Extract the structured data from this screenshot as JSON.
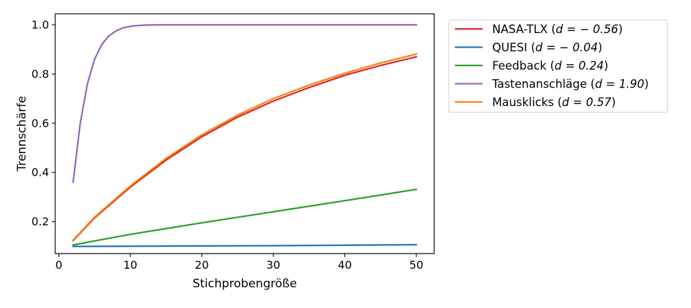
{
  "chart_data": {
    "type": "line",
    "xlabel": "Stichprobengröße",
    "ylabel": "Trennschärfe",
    "xlim": [
      -0.5,
      52.5
    ],
    "ylim": [
      0.07,
      1.045
    ],
    "xticks": [
      0,
      10,
      20,
      30,
      40,
      50
    ],
    "xtick_labels": [
      "0",
      "10",
      "20",
      "30",
      "40",
      "50"
    ],
    "yticks": [
      0.2,
      0.4,
      0.6,
      0.8,
      1.0
    ],
    "ytick_labels": [
      "0.2",
      "0.4",
      "0.6",
      "0.8",
      "1.0"
    ],
    "grid": false,
    "legend_placement": "outside-top-right",
    "series": [
      {
        "name": "NASA-TLX (d = −0.56)",
        "color": "#d62728",
        "x": [
          2,
          5,
          10,
          15,
          20,
          25,
          30,
          35,
          40,
          45,
          50
        ],
        "y": [
          0.123,
          0.215,
          0.34,
          0.45,
          0.545,
          0.625,
          0.69,
          0.745,
          0.795,
          0.835,
          0.87
        ]
      },
      {
        "name": "QUESI (d = −0.04)",
        "color": "#1f77b4",
        "x": [
          2,
          10,
          20,
          30,
          40,
          50
        ],
        "y": [
          0.099,
          0.1,
          0.101,
          0.102,
          0.104,
          0.106
        ]
      },
      {
        "name": "Feedback (d = 0.24)",
        "color": "#2ca02c",
        "x": [
          2,
          10,
          20,
          30,
          40,
          50
        ],
        "y": [
          0.105,
          0.148,
          0.195,
          0.24,
          0.285,
          0.331
        ]
      },
      {
        "name": "Tastenanschläge (d = 1.90)",
        "color": "#9467bd",
        "x": [
          2,
          3,
          4,
          5,
          6,
          7,
          8,
          9,
          10,
          11,
          12,
          14,
          16,
          20,
          30,
          40,
          50
        ],
        "y": [
          0.36,
          0.6,
          0.76,
          0.86,
          0.92,
          0.955,
          0.975,
          0.988,
          0.994,
          0.997,
          0.999,
          1.0,
          1.0,
          1.0,
          1.0,
          1.0,
          1.0
        ]
      },
      {
        "name": "Mausklicks (d = 0.57)",
        "color": "#ff7f0e",
        "x": [
          2,
          5,
          10,
          15,
          20,
          25,
          30,
          35,
          40,
          45,
          50
        ],
        "y": [
          0.125,
          0.218,
          0.345,
          0.457,
          0.553,
          0.633,
          0.7,
          0.755,
          0.803,
          0.845,
          0.881
        ]
      }
    ],
    "legend_entries": [
      {
        "prefix": "NASA-TLX (",
        "math": "d = − 0.56",
        "suffix": ")"
      },
      {
        "prefix": "QUESI (",
        "math": "d = − 0.04",
        "suffix": ")"
      },
      {
        "prefix": "Feedback (",
        "math": "d = 0.24",
        "suffix": ")"
      },
      {
        "prefix": "Tastenanschläge (",
        "math": "d = 1.90",
        "suffix": ")"
      },
      {
        "prefix": "Mausklicks (",
        "math": "d = 0.57",
        "suffix": ")"
      }
    ]
  }
}
